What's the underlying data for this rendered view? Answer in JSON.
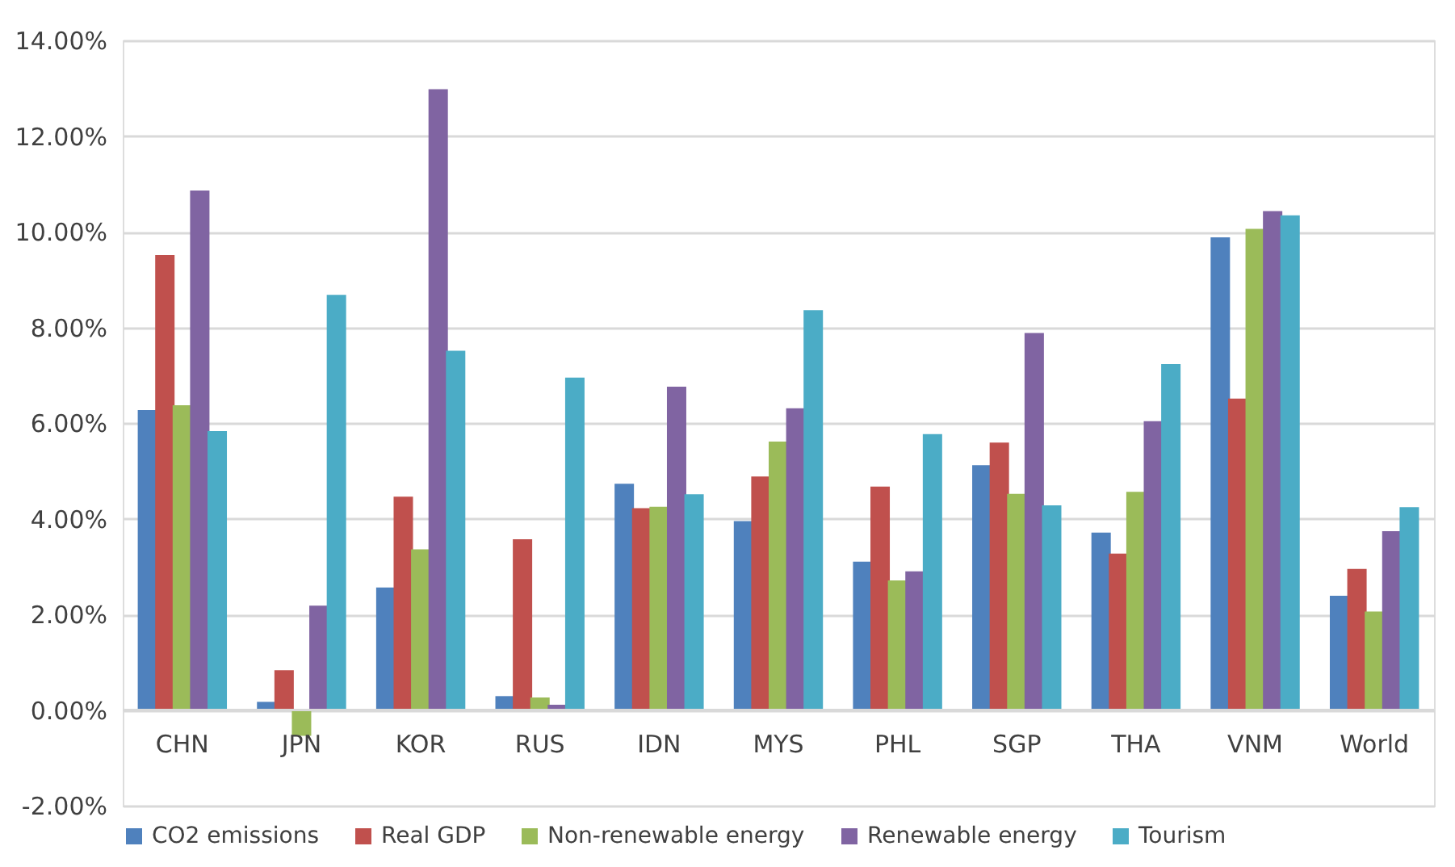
{
  "chart_data": {
    "type": "bar",
    "categories": [
      "CHN",
      "JPN",
      "KOR",
      "RUS",
      "IDN",
      "MYS",
      "PHL",
      "SGP",
      "THA",
      "VNM",
      "World"
    ],
    "series": [
      {
        "name": "CO2 emissions",
        "color": "#4f81bd",
        "values": [
          6.27,
          0.17,
          2.56,
          0.29,
          4.73,
          3.95,
          3.1,
          5.12,
          3.71,
          9.88,
          2.39
        ]
      },
      {
        "name": "Real GDP",
        "color": "#c0504d",
        "values": [
          9.51,
          0.83,
          4.46,
          3.57,
          4.22,
          4.88,
          4.67,
          5.59,
          3.27,
          6.51,
          2.95
        ]
      },
      {
        "name": "Non-renewable energy",
        "color": "#9bbb59",
        "values": [
          6.37,
          -0.54,
          3.36,
          0.26,
          4.25,
          5.61,
          2.71,
          4.52,
          4.56,
          10.06,
          2.06
        ]
      },
      {
        "name": "Renewable energy",
        "color": "#8064a2",
        "values": [
          10.86,
          2.18,
          12.98,
          0.11,
          6.76,
          6.31,
          2.9,
          7.88,
          6.04,
          10.43,
          3.74
        ]
      },
      {
        "name": "Tourism",
        "color": "#4bacc6",
        "values": [
          5.83,
          8.68,
          7.51,
          6.95,
          4.51,
          8.36,
          5.77,
          4.28,
          7.23,
          10.34,
          4.24
        ]
      }
    ],
    "ylim": [
      -2,
      14
    ],
    "yticks": [
      {
        "value": -2,
        "label": "-2.00%"
      },
      {
        "value": 0,
        "label": "0.00%"
      },
      {
        "value": 2,
        "label": "2.00%"
      },
      {
        "value": 4,
        "label": "4.00%"
      },
      {
        "value": 6,
        "label": "6.00%"
      },
      {
        "value": 8,
        "label": "8.00%"
      },
      {
        "value": 10,
        "label": "10.00%"
      },
      {
        "value": 12,
        "label": "12.00%"
      },
      {
        "value": 14,
        "label": "14.00%"
      }
    ],
    "grid": "y",
    "legend": "bottom"
  }
}
